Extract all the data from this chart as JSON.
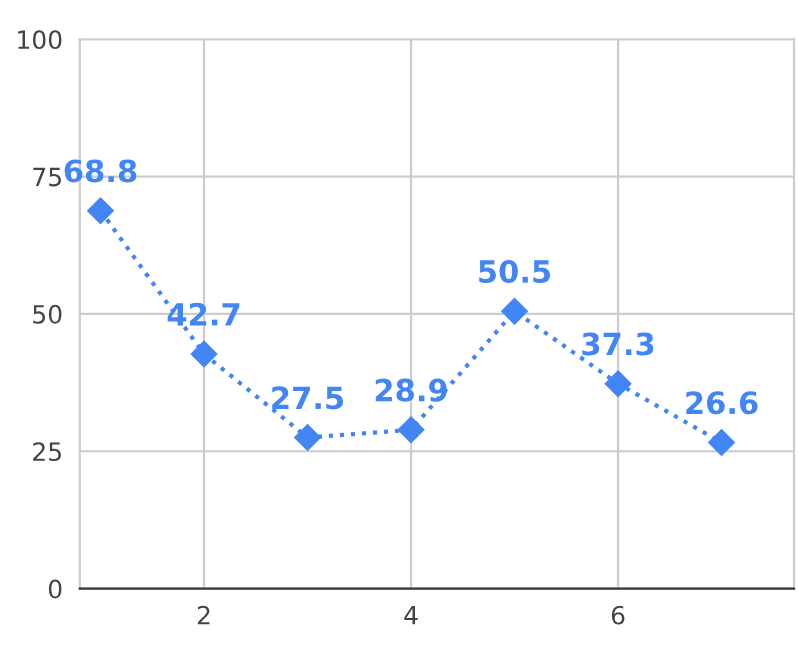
{
  "chart_data": {
    "type": "line",
    "x": [
      1,
      2,
      3,
      4,
      5,
      6,
      7
    ],
    "series": [
      {
        "color": "#4285f4",
        "values": [
          68.8,
          42.7,
          27.5,
          28.9,
          50.5,
          37.3,
          26.6
        ]
      }
    ],
    "xlim": [
      0.8,
      7.7
    ],
    "xticks": [
      2,
      4,
      6
    ],
    "ylim": [
      0,
      100
    ],
    "yticks": [
      0,
      25,
      50,
      75,
      100
    ],
    "grid": true,
    "marker": "diamond",
    "line_style": "dotted",
    "data_labels": true
  }
}
